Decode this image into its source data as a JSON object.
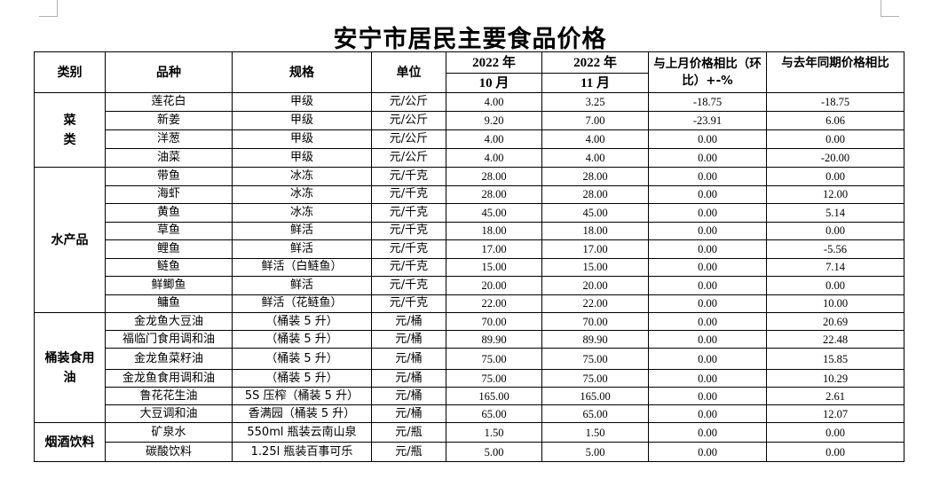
{
  "title": "安宁市居民主要食品价格",
  "headers": {
    "category": "类别",
    "variety": "品种",
    "spec": "规格",
    "unit": "单位",
    "oct_year": "2022 年",
    "oct_month": "10 月",
    "nov_year": "2022 年",
    "nov_month": "11 月",
    "mom": "与上月价格相比（环比）+-%",
    "yoy": "与去年同期价格相比"
  },
  "groups": [
    {
      "category": "菜 类",
      "rows": [
        {
          "variety": "莲花白",
          "spec": "甲级",
          "unit": "元/公斤",
          "oct": "4.00",
          "nov": "3.25",
          "mom": "-18.75",
          "yoy": "-18.75"
        },
        {
          "variety": "新姜",
          "spec": "甲级",
          "unit": "元/公斤",
          "oct": "9.20",
          "nov": "7.00",
          "mom": "-23.91",
          "yoy": "6.06"
        },
        {
          "variety": "洋葱",
          "spec": "甲级",
          "unit": "元/公斤",
          "oct": "4.00",
          "nov": "4.00",
          "mom": "0.00",
          "yoy": "0.00"
        },
        {
          "variety": "油菜",
          "spec": "甲级",
          "unit": "元/公斤",
          "oct": "4.00",
          "nov": "4.00",
          "mom": "0.00",
          "yoy": "-20.00"
        }
      ]
    },
    {
      "category": "水产品",
      "rows": [
        {
          "variety": "带鱼",
          "spec": "冰冻",
          "unit": "元/千克",
          "oct": "28.00",
          "nov": "28.00",
          "mom": "0.00",
          "yoy": "0.00"
        },
        {
          "variety": "海虾",
          "spec": "冰冻",
          "unit": "元/千克",
          "oct": "28.00",
          "nov": "28.00",
          "mom": "0.00",
          "yoy": "12.00"
        },
        {
          "variety": "黄鱼",
          "spec": "冰冻",
          "unit": "元/千克",
          "oct": "45.00",
          "nov": "45.00",
          "mom": "0.00",
          "yoy": "5.14"
        },
        {
          "variety": "草鱼",
          "spec": "鲜活",
          "unit": "元/千克",
          "oct": "18.00",
          "nov": "18.00",
          "mom": "0.00",
          "yoy": "0.00"
        },
        {
          "variety": "鲤鱼",
          "spec": "鲜活",
          "unit": "元/千克",
          "oct": "17.00",
          "nov": "17.00",
          "mom": "0.00",
          "yoy": "-5.56"
        },
        {
          "variety": "鲢鱼",
          "spec": "鲜活（白鲢鱼）",
          "unit": "元/千克",
          "oct": "15.00",
          "nov": "15.00",
          "mom": "0.00",
          "yoy": "7.14"
        },
        {
          "variety": "鲜鲫鱼",
          "spec": "鲜活",
          "unit": "元/千克",
          "oct": "20.00",
          "nov": "20.00",
          "mom": "0.00",
          "yoy": "0.00"
        },
        {
          "variety": "鳙鱼",
          "spec": "鲜活（花鲢鱼）",
          "unit": "元/千克",
          "oct": "22.00",
          "nov": "22.00",
          "mom": "0.00",
          "yoy": "10.00"
        }
      ]
    },
    {
      "category": "桶装食用油",
      "rows": [
        {
          "variety": "金龙鱼大豆油",
          "spec": "（桶装 5 升）",
          "unit": "元/桶",
          "oct": "70.00",
          "nov": "70.00",
          "mom": "0.00",
          "yoy": "20.69"
        },
        {
          "variety": "福临门食用调和油",
          "spec": "（桶装 5 升）",
          "unit": "元/桶",
          "oct": "89.90",
          "nov": "89.90",
          "mom": "0.00",
          "yoy": "22.48"
        },
        {
          "variety": "金龙鱼菜籽油",
          "spec": "（桶装 5 升）",
          "unit": "元/桶",
          "oct": "75.00",
          "nov": "75.00",
          "mom": "0.00",
          "yoy": "15.85"
        },
        {
          "variety": "金龙鱼食用调和油",
          "spec": "（桶装 5 升）",
          "unit": "元/桶",
          "oct": "75.00",
          "nov": "75.00",
          "mom": "0.00",
          "yoy": "10.29"
        },
        {
          "variety": "鲁花花生油",
          "spec": "5S 压榨（桶装 5 升）",
          "unit": "元/桶",
          "oct": "165.00",
          "nov": "165.00",
          "mom": "0.00",
          "yoy": "2.61"
        },
        {
          "variety": "大豆调和油",
          "spec": "香满园（桶装 5 升）",
          "unit": "元/桶",
          "oct": "65.00",
          "nov": "65.00",
          "mom": "0.00",
          "yoy": "12.07"
        }
      ]
    },
    {
      "category": "烟酒饮料",
      "rows": [
        {
          "variety": "矿泉水",
          "spec": "550ml 瓶装云南山泉",
          "unit": "元/瓶",
          "oct": "1.50",
          "nov": "1.50",
          "mom": "0.00",
          "yoy": "0.00"
        },
        {
          "variety": "碳酸饮料",
          "spec": "1.25l 瓶装百事可乐",
          "unit": "元/瓶",
          "oct": "5.00",
          "nov": "5.00",
          "mom": "0.00",
          "yoy": "0.00"
        }
      ]
    }
  ]
}
